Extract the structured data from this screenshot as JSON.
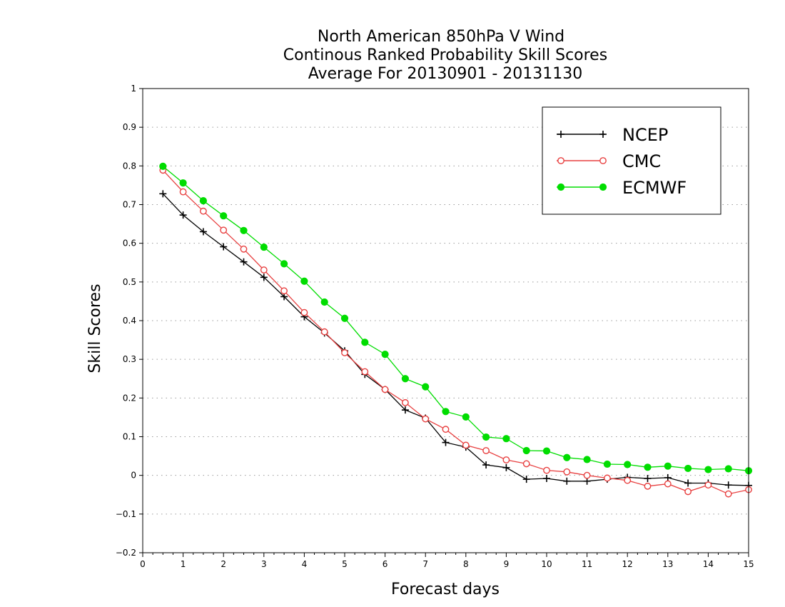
{
  "chart_data": {
    "type": "line",
    "title_lines": [
      "North American 850hPa V Wind",
      "Continous Ranked Probability Skill Scores",
      "Average For 20130901 - 20131130"
    ],
    "xlabel": "Forecast days",
    "ylabel": "Skill Scores",
    "xlim": [
      0,
      15
    ],
    "ylim": [
      -0.2,
      1
    ],
    "xticks": [
      "0",
      "1",
      "2",
      "3",
      "4",
      "5",
      "6",
      "7",
      "8",
      "9",
      "10",
      "11",
      "12",
      "13",
      "14",
      "15"
    ],
    "yticks": [
      "1",
      "0.9",
      "0.8",
      "0.7",
      "0.6",
      "0.5",
      "0.4",
      "0.3",
      "0.2",
      "0.1",
      "0",
      "−0.1",
      "−0.2"
    ],
    "grid": "horizontal dotted",
    "legend_position": "top-right",
    "x": [
      0.5,
      1,
      1.5,
      2,
      2.5,
      3,
      3.5,
      4,
      4.5,
      5,
      5.5,
      6,
      6.5,
      7,
      7.5,
      8,
      8.5,
      9,
      9.5,
      10,
      10.5,
      11,
      11.5,
      12,
      12.5,
      13,
      13.5,
      14,
      14.5,
      15
    ],
    "series": [
      {
        "name": "NCEP",
        "color": "#000000",
        "marker": "plus",
        "values": [
          0.728,
          0.673,
          0.63,
          0.591,
          0.552,
          0.512,
          0.462,
          0.41,
          0.368,
          0.322,
          0.261,
          0.222,
          0.169,
          0.148,
          0.085,
          0.073,
          0.027,
          0.02,
          -0.01,
          -0.008,
          -0.015,
          -0.015,
          -0.01,
          -0.005,
          -0.008,
          -0.006,
          -0.02,
          -0.02,
          -0.025,
          -0.026
        ]
      },
      {
        "name": "CMC",
        "color": "#e84040",
        "marker": "open-circle",
        "values": [
          0.789,
          0.733,
          0.683,
          0.634,
          0.585,
          0.531,
          0.477,
          0.421,
          0.371,
          0.317,
          0.268,
          0.222,
          0.188,
          0.146,
          0.119,
          0.078,
          0.064,
          0.04,
          0.03,
          0.013,
          0.009,
          0.0,
          -0.007,
          -0.013,
          -0.028,
          -0.022,
          -0.042,
          -0.025,
          -0.048,
          -0.037
        ]
      },
      {
        "name": "ECMWF",
        "color": "#00dd00",
        "marker": "filled-circle",
        "values": [
          0.799,
          0.756,
          0.71,
          0.671,
          0.633,
          0.59,
          0.547,
          0.502,
          0.448,
          0.406,
          0.344,
          0.313,
          0.25,
          0.229,
          0.165,
          0.151,
          0.099,
          0.095,
          0.064,
          0.063,
          0.046,
          0.041,
          0.029,
          0.028,
          0.021,
          0.024,
          0.018,
          0.015,
          0.017,
          0.012
        ]
      }
    ]
  }
}
